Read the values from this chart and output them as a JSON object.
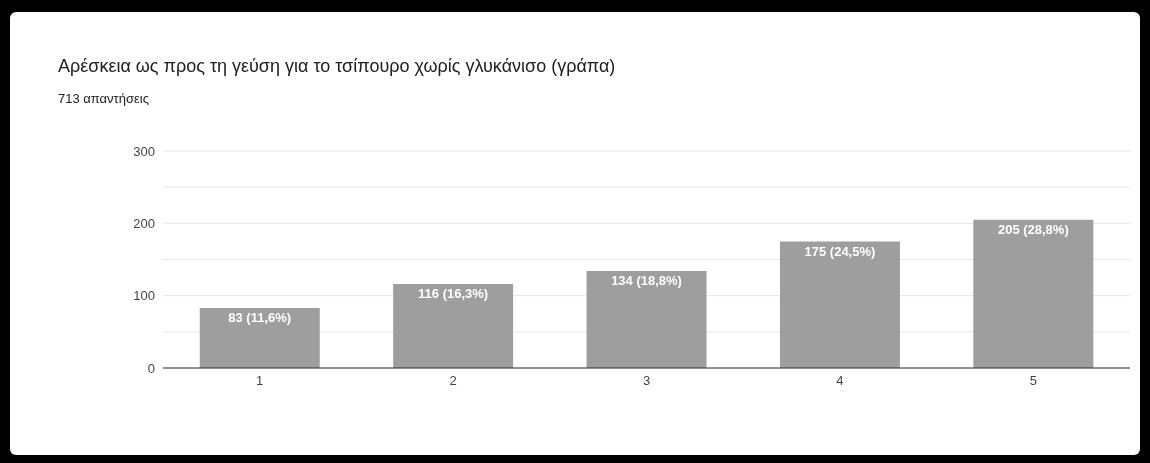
{
  "chart_data": {
    "type": "bar",
    "title": "Αρέσκεια ως προς τη γεύση για το τσίπουρο χωρίς γλυκάνισο (γράπα)",
    "subtitle": "713 απαντήσεις",
    "categories": [
      "1",
      "2",
      "3",
      "4",
      "5"
    ],
    "values": [
      83,
      116,
      134,
      175,
      205
    ],
    "value_labels": [
      "83 (11,6%)",
      "116 (16,3%)",
      "134 (18,8%)",
      "175 (24,5%)",
      "205 (28,8%)"
    ],
    "color": "#9e9e9e",
    "ylim": [
      0,
      300
    ],
    "yticks": [
      0,
      {
        "value": 50,
        "label": null
      },
      100,
      {
        "value": 150,
        "label": null
      },
      200,
      {
        "value": 250,
        "label": null
      },
      300
    ],
    "grid": "y"
  }
}
